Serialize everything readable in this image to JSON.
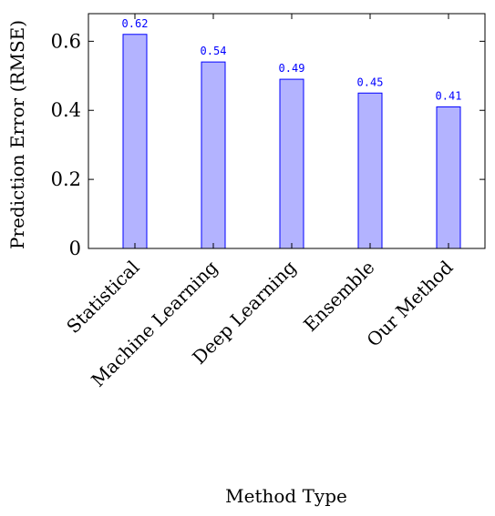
{
  "chart_data": {
    "type": "bar",
    "categories": [
      "Statistical",
      "Machine Learning",
      "Deep Learning",
      "Ensemble",
      "Our Method"
    ],
    "values": [
      0.62,
      0.54,
      0.49,
      0.45,
      0.41
    ],
    "data_labels": [
      "0.62",
      "0.54",
      "0.49",
      "0.45",
      "0.41"
    ],
    "title": "",
    "xlabel": "Method Type",
    "ylabel": "Prediction Error (RMSE)",
    "ylim": [
      0,
      0.68
    ],
    "yticks": [
      0,
      0.2,
      0.4,
      0.6
    ],
    "ytick_labels": [
      "0",
      "0.2",
      "0.4",
      "0.6"
    ],
    "grid": false,
    "bar_color": "#b3b3ff",
    "bar_edge_color": "#0000ff",
    "label_color": "#0000ff"
  }
}
